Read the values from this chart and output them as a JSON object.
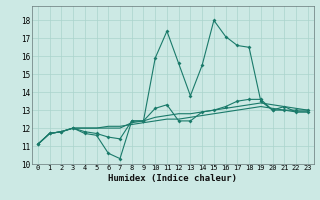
{
  "title": "",
  "xlabel": "Humidex (Indice chaleur)",
  "ylabel": "",
  "bg_color": "#cce9e4",
  "grid_color": "#aad4cc",
  "line_color": "#1a7a6a",
  "xlim": [
    -0.5,
    23.5
  ],
  "ylim": [
    10,
    18.8
  ],
  "xticks": [
    0,
    1,
    2,
    3,
    4,
    5,
    6,
    7,
    8,
    9,
    10,
    11,
    12,
    13,
    14,
    15,
    16,
    17,
    18,
    19,
    20,
    21,
    22,
    23
  ],
  "yticks": [
    10,
    11,
    12,
    13,
    14,
    15,
    16,
    17,
    18
  ],
  "x": [
    0,
    1,
    2,
    3,
    4,
    5,
    6,
    7,
    8,
    9,
    10,
    11,
    12,
    13,
    14,
    15,
    16,
    17,
    18,
    19,
    20,
    21,
    22,
    23
  ],
  "line1": [
    11.1,
    11.7,
    11.8,
    12.0,
    11.7,
    11.6,
    10.6,
    10.3,
    12.4,
    12.4,
    15.9,
    17.4,
    15.6,
    13.8,
    15.5,
    18.0,
    17.1,
    16.6,
    16.5,
    13.5,
    13.0,
    13.2,
    12.9,
    12.9
  ],
  "line2": [
    11.1,
    11.7,
    11.8,
    12.0,
    11.8,
    11.7,
    11.5,
    11.4,
    12.4,
    12.4,
    13.1,
    13.3,
    12.4,
    12.4,
    12.9,
    13.0,
    13.2,
    13.5,
    13.6,
    13.6,
    13.0,
    13.0,
    13.0,
    13.0
  ],
  "line3": [
    11.1,
    11.7,
    11.8,
    12.0,
    12.0,
    12.0,
    12.0,
    12.0,
    12.3,
    12.4,
    12.6,
    12.7,
    12.8,
    12.8,
    12.9,
    13.0,
    13.1,
    13.2,
    13.3,
    13.4,
    13.3,
    13.2,
    13.1,
    13.0
  ],
  "line4": [
    11.1,
    11.7,
    11.8,
    12.0,
    12.0,
    12.0,
    12.1,
    12.1,
    12.2,
    12.3,
    12.4,
    12.5,
    12.5,
    12.6,
    12.7,
    12.8,
    12.9,
    13.0,
    13.1,
    13.2,
    13.1,
    13.0,
    12.9,
    12.9
  ]
}
